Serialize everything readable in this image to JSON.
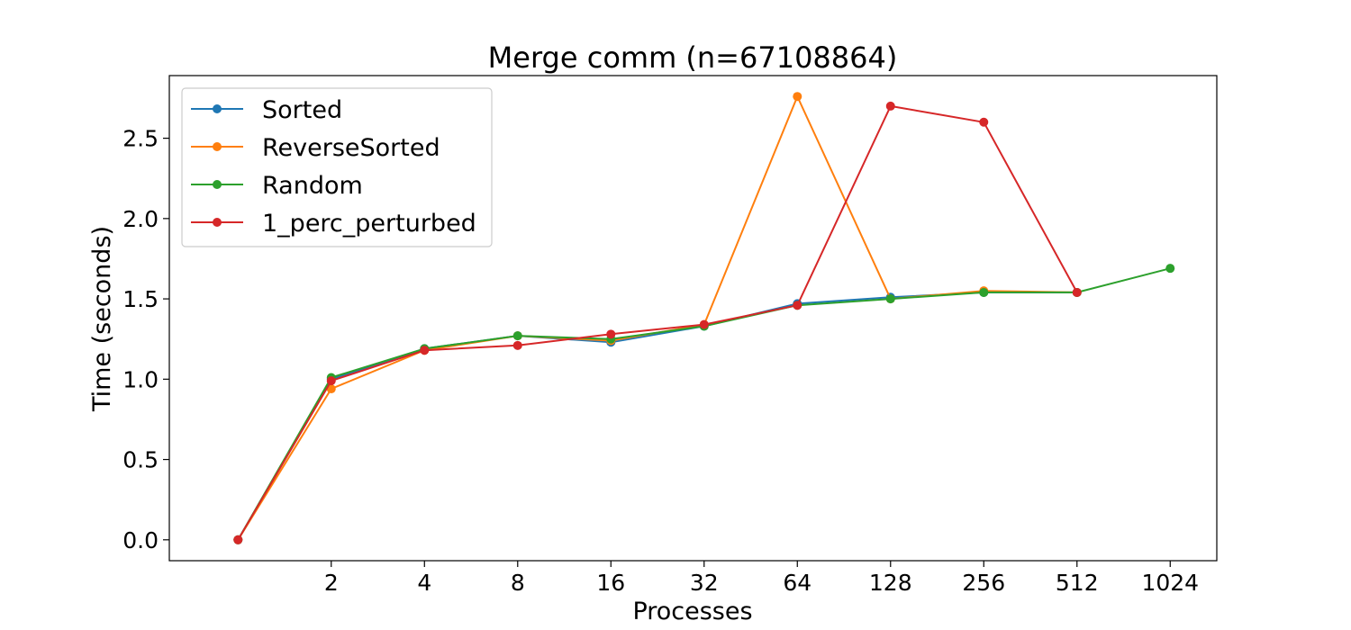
{
  "chart_data": {
    "type": "line",
    "title": "Merge comm (n=67108864)",
    "xlabel": "Processes",
    "ylabel": "Time (seconds)",
    "x_scale": "log2",
    "x_range": [
      0.6,
      1448
    ],
    "ylim": [
      -0.13,
      2.89
    ],
    "x_ticks": [
      2,
      4,
      8,
      16,
      32,
      64,
      128,
      256,
      512,
      1024
    ],
    "x_tick_labels": [
      "2",
      "4",
      "8",
      "16",
      "32",
      "64",
      "128",
      "256",
      "512",
      "1024"
    ],
    "y_ticks": [
      0.0,
      0.5,
      1.0,
      1.5,
      2.0,
      2.5
    ],
    "y_tick_labels": [
      "0.0",
      "0.5",
      "1.0",
      "1.5",
      "2.0",
      "2.5"
    ],
    "grid": false,
    "legend_position": "upper-left",
    "series": [
      {
        "name": "Sorted",
        "color": "#1f77b4",
        "x": [
          1,
          2,
          4,
          8,
          16,
          32,
          64,
          128,
          256,
          512
        ],
        "y": [
          0.0,
          1.0,
          1.19,
          1.27,
          1.23,
          1.33,
          1.47,
          1.51,
          1.54,
          1.54
        ]
      },
      {
        "name": "ReverseSorted",
        "color": "#ff7f0e",
        "x": [
          1,
          2,
          4,
          8,
          16,
          32,
          64,
          128,
          256,
          512
        ],
        "y": [
          0.0,
          0.94,
          1.18,
          1.27,
          1.24,
          1.34,
          2.76,
          1.5,
          1.55,
          1.54
        ]
      },
      {
        "name": "Random",
        "color": "#2ca02c",
        "x": [
          1,
          2,
          4,
          8,
          16,
          32,
          64,
          128,
          256,
          512,
          1024
        ],
        "y": [
          0.0,
          1.01,
          1.19,
          1.27,
          1.25,
          1.33,
          1.46,
          1.5,
          1.54,
          1.54,
          1.69
        ]
      },
      {
        "name": "1_perc_perturbed",
        "color": "#d62728",
        "x": [
          1,
          2,
          4,
          8,
          16,
          32,
          64,
          128,
          256,
          512
        ],
        "y": [
          0.0,
          0.99,
          1.18,
          1.21,
          1.28,
          1.34,
          1.46,
          2.7,
          2.6,
          1.54
        ]
      }
    ]
  }
}
